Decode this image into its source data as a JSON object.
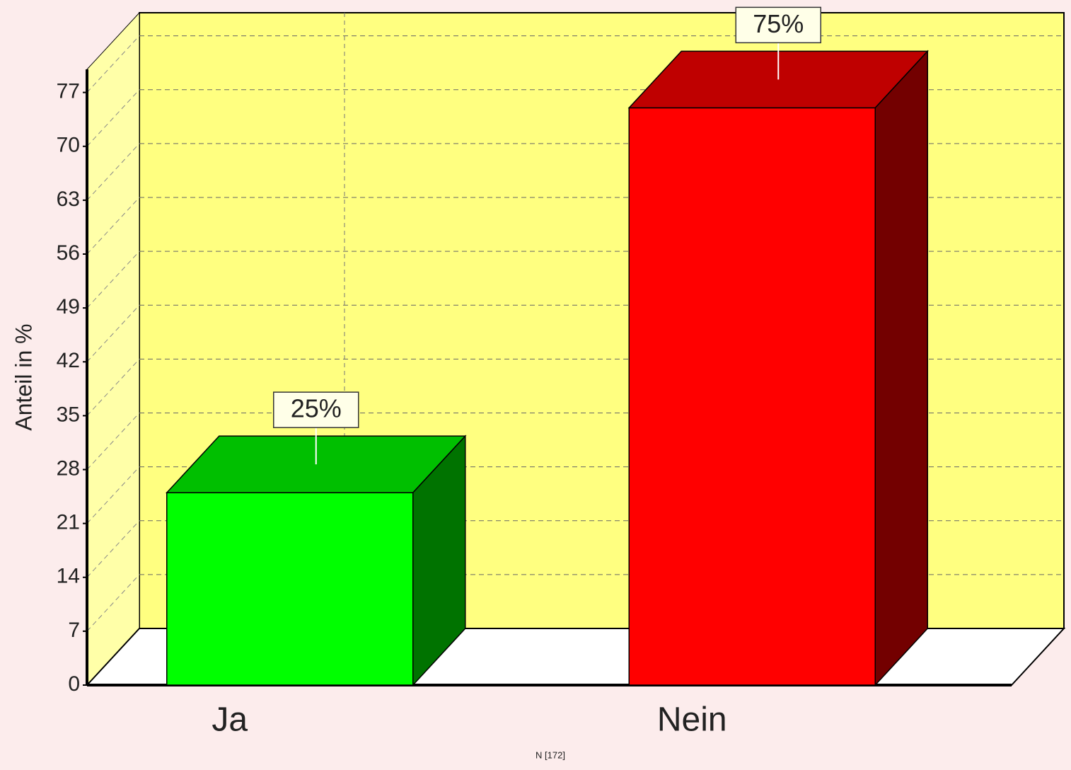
{
  "chart_data": {
    "type": "bar3d",
    "y_label": "Anteil in %",
    "footnote": "N [172]",
    "categories": [
      "Ja",
      "Nein"
    ],
    "values": [
      25,
      75
    ],
    "value_labels": [
      "25%",
      "75%"
    ],
    "colors": [
      "#00ff00",
      "#ff0000"
    ],
    "ylim": [
      0,
      80
    ],
    "yticks": [
      0,
      7,
      14,
      21,
      28,
      35,
      42,
      49,
      56,
      63,
      70,
      77
    ],
    "grid": true
  }
}
